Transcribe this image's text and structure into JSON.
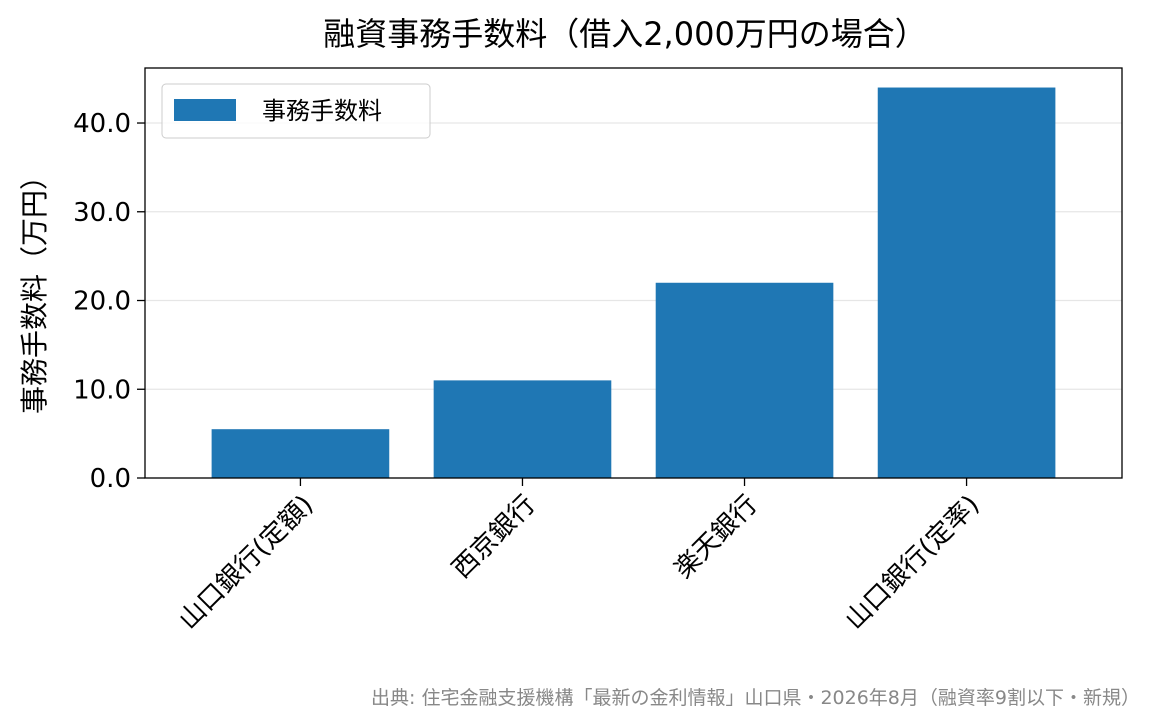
{
  "chart_data": {
    "type": "bar",
    "title": "融資事務手数料（借入2,000万円の場合）",
    "xlabel": "",
    "ylabel": "事務手数料（万円）",
    "categories": [
      "山口銀行(定額)",
      "西京銀行",
      "楽天銀行",
      "山口銀行(定率)"
    ],
    "series": [
      {
        "name": "事務手数料",
        "values": [
          5.5,
          11.0,
          22.0,
          44.0
        ]
      }
    ],
    "ylim": [
      0,
      46.2
    ],
    "yticks": [
      0.0,
      10.0,
      20.0,
      30.0,
      40.0
    ],
    "ytick_labels": [
      "0.0",
      "10.0",
      "20.0",
      "30.0",
      "40.0"
    ],
    "grid": "horizontal",
    "legend_position": "top-left",
    "source_note": "出典: 住宅金融支援機構「最新の金利情報」山口県・2026年8月（融資率9割以下・新規）",
    "colors": {
      "bar": "#1f77b4",
      "grid": "#e6e6e6",
      "axis": "#000000",
      "source": "#888888"
    }
  }
}
